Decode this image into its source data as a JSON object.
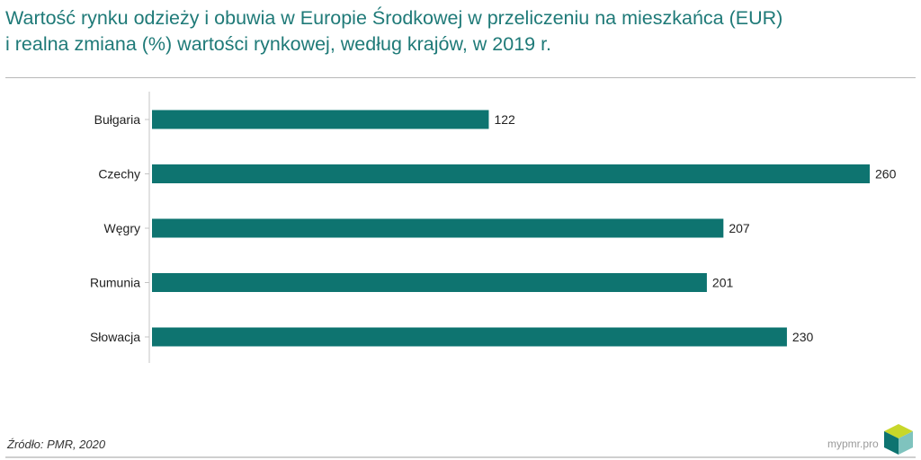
{
  "title_lines": [
    "Wartość rynku odzieży i obuwia w Europie Środkowej w przeliczeniu na mieszkańca (EUR)",
    "i realna zmiana (%) wartości rynkowej, według krajów, w 2019 r."
  ],
  "source": "Źródło: PMR, 2020",
  "brand": "mypmr.pro",
  "colors": {
    "bar": "#0e7470",
    "title": "#1f7a78",
    "logo_top": "#c8d72a",
    "logo_left": "#0e7470",
    "logo_right": "#7fc3be"
  },
  "chart_data": {
    "type": "bar",
    "orientation": "horizontal",
    "categories": [
      "Bułgaria",
      "Czechy",
      "Węgry",
      "Rumunia",
      "Słowacja"
    ],
    "values": [
      122,
      260,
      207,
      201,
      230
    ],
    "data_labels": [
      "122",
      "260",
      "207",
      "201",
      "230"
    ],
    "xlim": [
      0,
      260
    ],
    "grid": false,
    "legend": "none"
  }
}
